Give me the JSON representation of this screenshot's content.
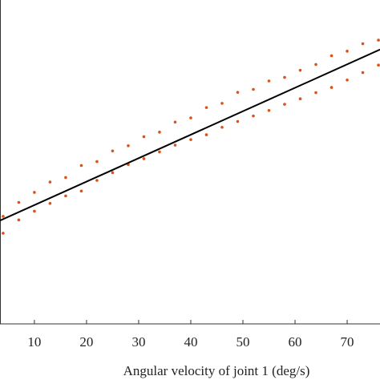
{
  "chart_data": {
    "type": "scatter",
    "xlabel": "Angular velocity of joint 1 (deg/s)",
    "x": [
      4,
      7,
      10,
      13,
      16,
      19,
      22,
      25,
      28,
      31,
      34,
      37,
      40,
      43,
      46,
      49,
      52,
      55,
      58,
      61,
      64,
      67,
      70,
      73,
      76,
      4,
      7,
      10,
      13,
      16,
      19,
      22,
      25,
      28,
      31,
      34,
      37,
      40,
      43,
      46,
      49,
      52,
      55,
      58,
      61,
      64,
      67,
      70,
      73,
      76
    ],
    "values": [
      33.2,
      37.5,
      40.6,
      43.8,
      45.2,
      48.9,
      50.1,
      53.4,
      55.0,
      57.8,
      59.2,
      62.3,
      63.6,
      66.8,
      68.1,
      71.5,
      72.4,
      75.0,
      76.1,
      78.3,
      80.1,
      82.8,
      84.2,
      86.5,
      87.6,
      28.0,
      32.1,
      34.8,
      37.2,
      39.5,
      41.0,
      44.3,
      46.7,
      49.2,
      51.0,
      53.1,
      55.2,
      56.9,
      58.4,
      60.7,
      62.5,
      64.2,
      65.9,
      67.8,
      69.5,
      71.4,
      73.0,
      75.3,
      77.6,
      79.9
    ],
    "color": "#d95319",
    "fit_line": {
      "x": [
        3.4,
        76.3
      ],
      "values": [
        31.9,
        84.7
      ],
      "color": "#000000"
    },
    "xlim": [
      3.4,
      76.3
    ],
    "xticks": [
      10,
      20,
      30,
      40,
      50,
      60,
      70
    ],
    "ylim": [
      0,
      100
    ]
  }
}
